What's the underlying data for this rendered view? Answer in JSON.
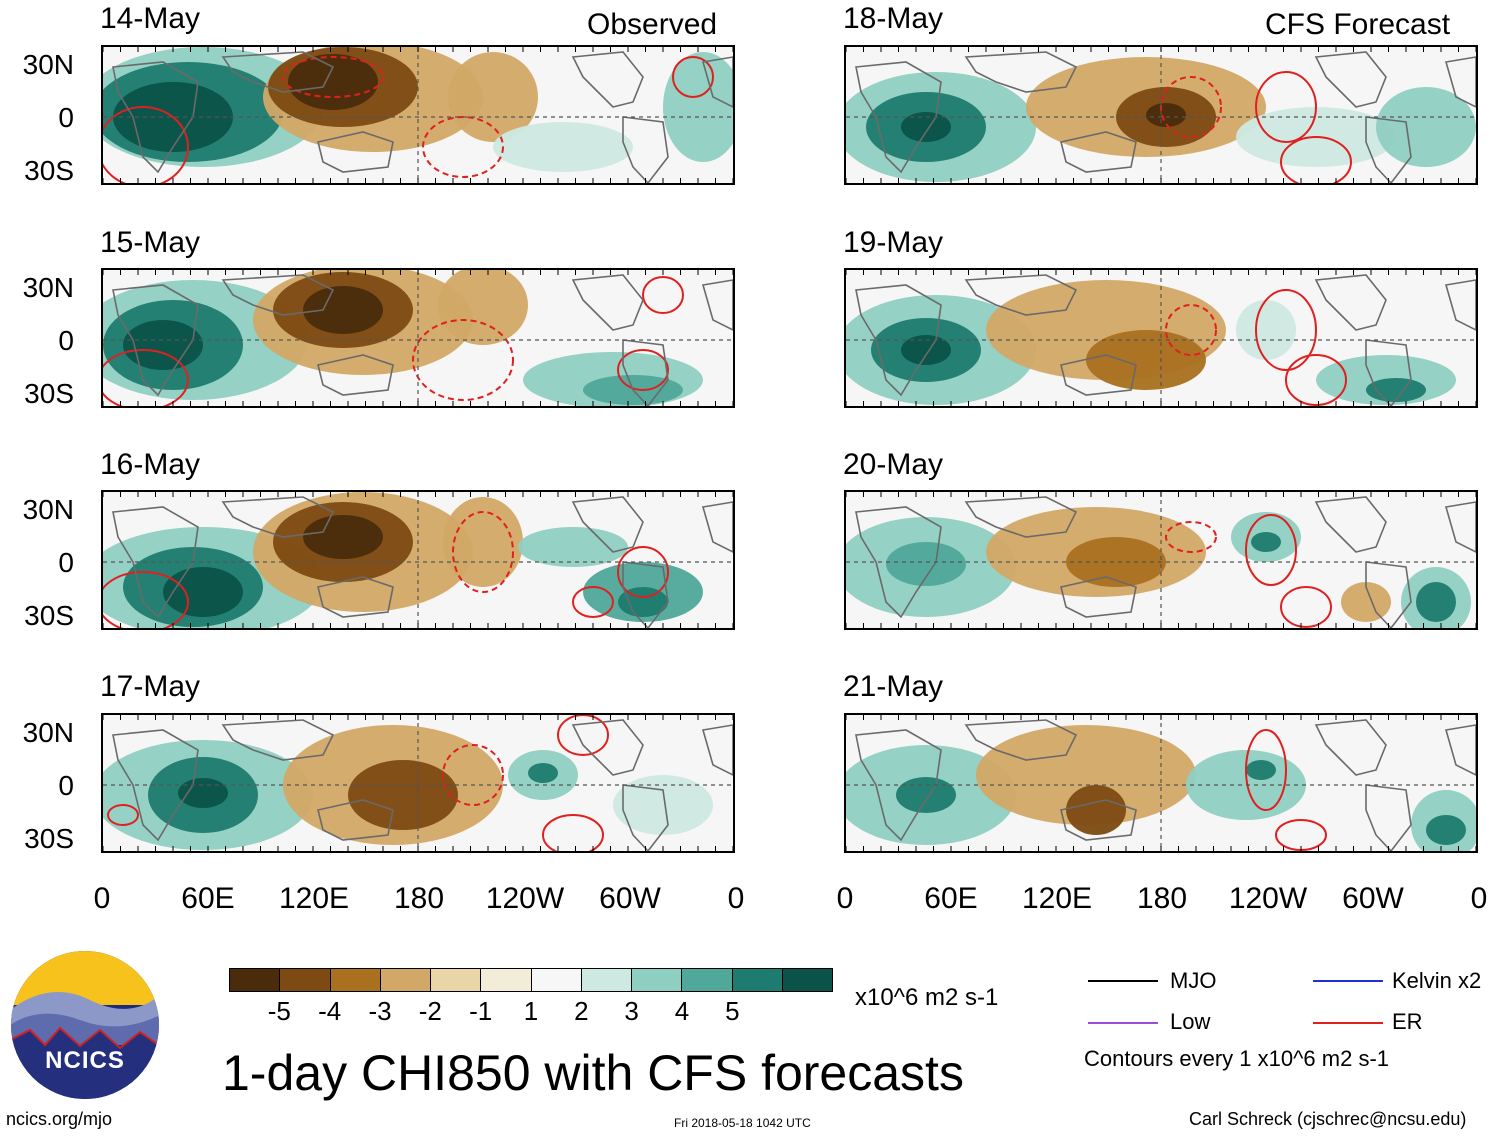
{
  "header": {
    "left_label": "Observed",
    "right_label": "CFS Forecast"
  },
  "panels": {
    "observed": [
      {
        "date": "14-May"
      },
      {
        "date": "15-May"
      },
      {
        "date": "16-May"
      },
      {
        "date": "17-May"
      }
    ],
    "forecast": [
      {
        "date": "18-May"
      },
      {
        "date": "19-May"
      },
      {
        "date": "20-May"
      },
      {
        "date": "21-May"
      }
    ]
  },
  "axes": {
    "lat_labels": [
      "30N",
      "0",
      "30S"
    ],
    "lon_labels": [
      "0",
      "60E",
      "120E",
      "180",
      "120W",
      "60W",
      "0"
    ]
  },
  "colorbar": {
    "ticks": [
      "-5",
      "-4",
      "-3",
      "-2",
      "-1",
      "1",
      "2",
      "3",
      "4",
      "5"
    ],
    "colors": [
      "#4a2c0c",
      "#7c4a12",
      "#a9701f",
      "#d2a866",
      "#e9d6a8",
      "#f3ecd8",
      "#f7f7f7",
      "#cde9e1",
      "#8fcfc1",
      "#4fa89a",
      "#1d7b6f",
      "#0b5249"
    ],
    "units": "x10^6 m2 s-1"
  },
  "title": "1-day CHI850 with CFS forecasts",
  "legend": {
    "items": [
      {
        "label": "MJO",
        "color": "#000000"
      },
      {
        "label": "Kelvin x2",
        "color": "#1f2fd6"
      },
      {
        "label": "Low",
        "color": "#9b4fd6"
      },
      {
        "label": "ER",
        "color": "#e02020"
      }
    ],
    "note": "Contours every 1 x10^6 m2 s-1"
  },
  "logo": {
    "text": "NCICS"
  },
  "footer": {
    "url": "ncics.org/mjo",
    "timestamp": "Fri 2018-05-18 1042 UTC",
    "author": "Carl Schreck (cjschrec@ncsu.edu)"
  }
}
